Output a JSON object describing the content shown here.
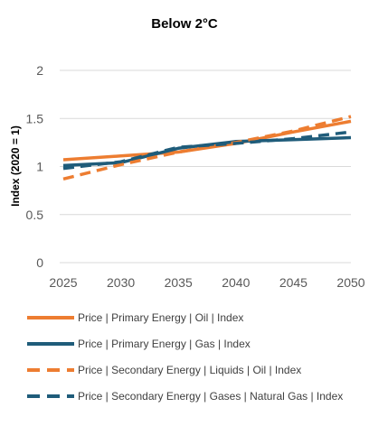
{
  "chart_data": {
    "type": "line",
    "title": "Below 2°C",
    "xlabel": "",
    "ylabel": "Index (2020 = 1)",
    "x": [
      2025,
      2030,
      2035,
      2040,
      2045,
      2050
    ],
    "xlim": [
      2025,
      2050
    ],
    "ylim": [
      0,
      2
    ],
    "yticks": [
      "0",
      "0.5",
      "1",
      "1.5",
      "2"
    ],
    "xticks": [
      "2025",
      "2030",
      "2035",
      "2040",
      "2045",
      "2050"
    ],
    "grid": true,
    "legend_position": "bottom",
    "series": [
      {
        "name": "Price | Primary Energy | Oil | Index",
        "color": "#ED7D31",
        "dash": false,
        "values": [
          1.07,
          1.11,
          1.15,
          1.24,
          1.36,
          1.47
        ]
      },
      {
        "name": "Price | Primary Energy | Gas | Index",
        "color": "#1F5C7A",
        "dash": false,
        "values": [
          1.01,
          1.04,
          1.19,
          1.26,
          1.28,
          1.3
        ]
      },
      {
        "name": "Price | Secondary Energy | Liquids | Oil | Index",
        "color": "#ED7D31",
        "dash": true,
        "values": [
          0.87,
          1.02,
          1.15,
          1.25,
          1.37,
          1.52
        ]
      },
      {
        "name": "Price | Secondary Energy | Gases | Natural Gas | Index",
        "color": "#1F5C7A",
        "dash": true,
        "values": [
          0.98,
          1.05,
          1.2,
          1.24,
          1.29,
          1.36
        ]
      }
    ]
  }
}
